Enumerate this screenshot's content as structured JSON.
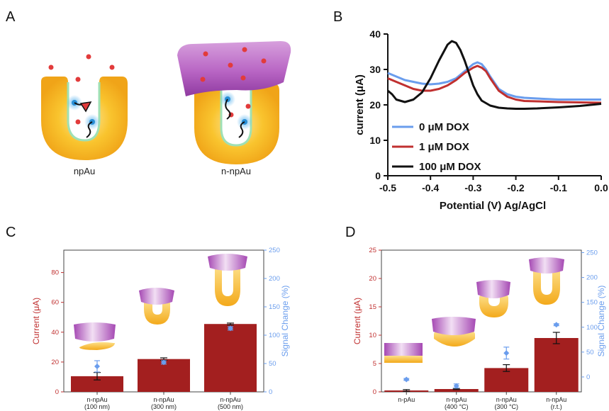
{
  "panels": {
    "A": {
      "label": "A",
      "schematic_labels": [
        "npAu",
        "n-npAu"
      ]
    },
    "B": {
      "label": "B"
    },
    "C": {
      "label": "C"
    },
    "D": {
      "label": "D"
    }
  },
  "colors": {
    "bar": "#a31f1f",
    "signal": "#6a9ded",
    "left_axis": "#c03030",
    "right_axis": "#6a9ded",
    "gold": "#f5b51a",
    "cap": "#b05cc0",
    "dot": "#e23b3b"
  },
  "chart_data": [
    {
      "id": "B",
      "type": "line",
      "xlabel": "Potential (V) Ag/AgCl",
      "ylabel": "current (μA)",
      "xlim": [
        -0.5,
        0.0
      ],
      "ylim": [
        0,
        40
      ],
      "xticks": [
        "-0.5",
        "-0.4",
        "-0.3",
        "-0.2",
        "-0.1",
        "0.0"
      ],
      "yticks": [
        "0",
        "10",
        "20",
        "30",
        "40"
      ],
      "legend_position": "lower-left",
      "series": [
        {
          "name": "0 μM DOX",
          "color": "#6a9ded",
          "x": [
            -0.5,
            -0.48,
            -0.46,
            -0.44,
            -0.42,
            -0.4,
            -0.38,
            -0.36,
            -0.34,
            -0.32,
            -0.3,
            -0.29,
            -0.28,
            -0.27,
            -0.26,
            -0.24,
            -0.22,
            -0.2,
            -0.18,
            -0.15,
            -0.1,
            -0.05,
            0.0
          ],
          "y": [
            29,
            28,
            27,
            26.5,
            26,
            25.8,
            26,
            26.5,
            27.5,
            29.5,
            31.5,
            32,
            31.5,
            30,
            28,
            24.5,
            23,
            22.3,
            22,
            21.8,
            21.5,
            21.5,
            21.5
          ]
        },
        {
          "name": "1 μM DOX",
          "color": "#c03030",
          "x": [
            -0.5,
            -0.48,
            -0.46,
            -0.44,
            -0.42,
            -0.4,
            -0.38,
            -0.36,
            -0.34,
            -0.32,
            -0.3,
            -0.29,
            -0.28,
            -0.27,
            -0.26,
            -0.24,
            -0.22,
            -0.2,
            -0.18,
            -0.15,
            -0.1,
            -0.05,
            0.0
          ],
          "y": [
            27.5,
            26.5,
            25.5,
            24.5,
            24,
            24,
            24.5,
            25.5,
            27,
            29,
            30.5,
            31,
            30.5,
            29.5,
            27.5,
            24,
            22.3,
            21.5,
            21.1,
            21,
            20.8,
            20.7,
            20.6
          ]
        },
        {
          "name": "100 μM DOX",
          "color": "#111111",
          "x": [
            -0.5,
            -0.49,
            -0.48,
            -0.46,
            -0.44,
            -0.42,
            -0.4,
            -0.38,
            -0.36,
            -0.35,
            -0.34,
            -0.33,
            -0.32,
            -0.31,
            -0.3,
            -0.29,
            -0.28,
            -0.26,
            -0.24,
            -0.22,
            -0.2,
            -0.18,
            -0.15,
            -0.1,
            -0.05,
            0.0
          ],
          "y": [
            24,
            23,
            21.5,
            20.8,
            21.5,
            23.5,
            27.5,
            32.5,
            37,
            38,
            37.5,
            35.5,
            32.5,
            29,
            25.5,
            23,
            21.2,
            19.8,
            19.2,
            19,
            18.9,
            18.9,
            19,
            19.3,
            19.7,
            20.3
          ]
        }
      ]
    },
    {
      "id": "C",
      "type": "bar",
      "ylabel_left": "Current (μA)",
      "ylabel_right": "Signal Change (%)",
      "ylim_left": [
        0,
        95
      ],
      "ylim_right": [
        0,
        250
      ],
      "yticks_left": [
        "0",
        "20",
        "40",
        "60",
        "80"
      ],
      "yticks_right": [
        "0",
        "50",
        "100",
        "150",
        "200",
        "250"
      ],
      "categories": [
        {
          "line1": "n-npAu",
          "line2": "(100 nm)"
        },
        {
          "line1": "n-npAu",
          "line2": "(300 nm)"
        },
        {
          "line1": "n-npAu",
          "line2": "(500 nm)"
        }
      ],
      "bars": {
        "name": "Current",
        "values": [
          10.5,
          22,
          45.5
        ],
        "errors": [
          2.5,
          0.8,
          0.6
        ]
      },
      "points": {
        "name": "Signal Change",
        "values": [
          45,
          52,
          112
        ],
        "errors": [
          10,
          3,
          3
        ]
      }
    },
    {
      "id": "D",
      "type": "bar",
      "ylabel_left": "Current (μA)",
      "ylabel_right": "Signal Change (%)",
      "ylim_left": [
        0,
        25
      ],
      "ylim_right": [
        -30,
        255
      ],
      "yticks_left": [
        "0",
        "5",
        "10",
        "15",
        "20",
        "25"
      ],
      "yticks_right": [
        "0",
        "50",
        "100",
        "150",
        "200",
        "250"
      ],
      "categories": [
        {
          "line1": "n-pAu",
          "line2": ""
        },
        {
          "line1": "n-npAu",
          "line2": "(400 °C)"
        },
        {
          "line1": "n-npAu",
          "line2": "(300 °C)"
        },
        {
          "line1": "n-npAu",
          "line2": "(r.t.)"
        }
      ],
      "bars": {
        "name": "Current",
        "values": [
          0.25,
          0.5,
          4.2,
          9.5
        ],
        "errors": [
          0.15,
          0.1,
          0.6,
          1.0
        ]
      },
      "points": {
        "name": "Signal Change",
        "values": [
          -5,
          -18,
          48,
          105
        ],
        "errors": [
          2,
          4,
          12,
          2
        ]
      }
    }
  ]
}
